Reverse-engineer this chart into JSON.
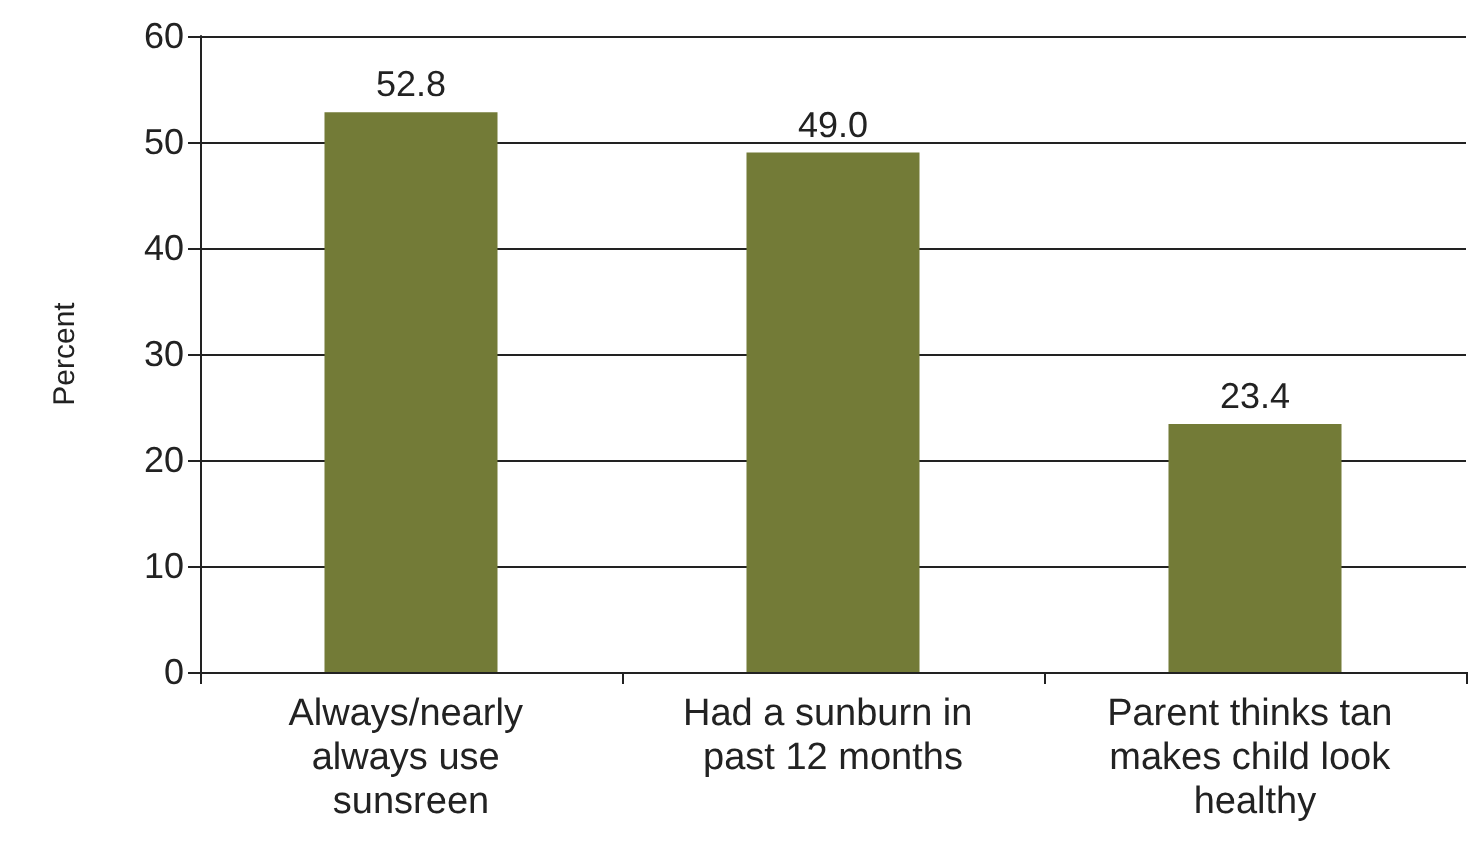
{
  "chart_data": {
    "type": "bar",
    "ylabel": "Percent",
    "categories": [
      "Always/nearly always use sunsreen",
      "Had a sunburn in past 12 months",
      "Parent thinks tan makes child look healthy"
    ],
    "values": [
      52.8,
      49.0,
      23.4
    ],
    "value_labels": [
      "52.8",
      "49.0",
      "23.4"
    ],
    "color": "#737b37",
    "ylim": [
      0,
      60
    ],
    "yticks": [
      0,
      10,
      20,
      30,
      40,
      50,
      60
    ],
    "grid": "y"
  }
}
